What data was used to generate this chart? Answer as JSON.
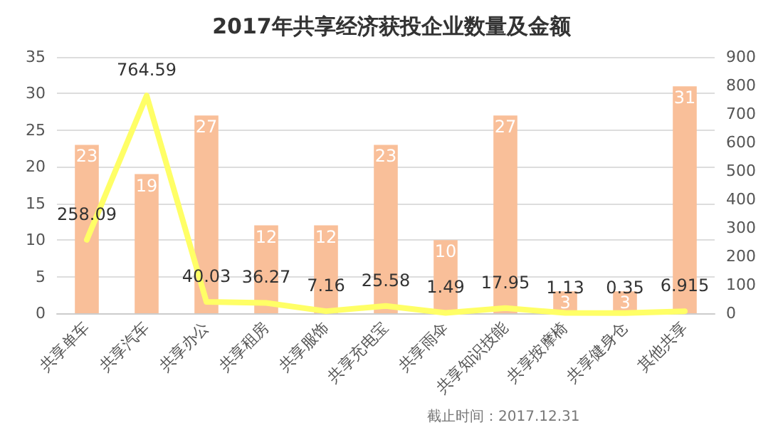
{
  "chart_data": {
    "type": "bar",
    "title": "2017年共享经济获投企业数量及金额",
    "categories": [
      "共享单车",
      "共享汽车",
      "共享办公",
      "共享租房",
      "共享服饰",
      "共享充电宝",
      "共享雨伞",
      "共享知识技能",
      "共享按摩椅",
      "共享健身仓",
      "其他共享"
    ],
    "series": [
      {
        "color": "#f9bf99",
        "values": [
          23,
          19,
          27,
          12,
          12,
          23,
          10,
          27,
          3,
          3,
          31
        ]
      },
      {
        "type": "line",
        "axis": "y2",
        "color": "#ffff66",
        "values": [
          258.09,
          764.59,
          40.03,
          36.27,
          7.16,
          25.58,
          1.49,
          17.95,
          1.13,
          0.35,
          6.915
        ]
      }
    ],
    "ylim": [
      0,
      35
    ],
    "yticks": [
      0,
      5,
      10,
      15,
      20,
      25,
      30,
      35
    ],
    "y2lim": [
      0,
      900
    ],
    "y2ticks": [
      0,
      100,
      200,
      300,
      400,
      500,
      600,
      700,
      800,
      900
    ],
    "grid": "y",
    "data_labels": true,
    "marker": "none",
    "line_style": "solid",
    "annotations": [
      "截止时间：2017.12.31"
    ]
  }
}
